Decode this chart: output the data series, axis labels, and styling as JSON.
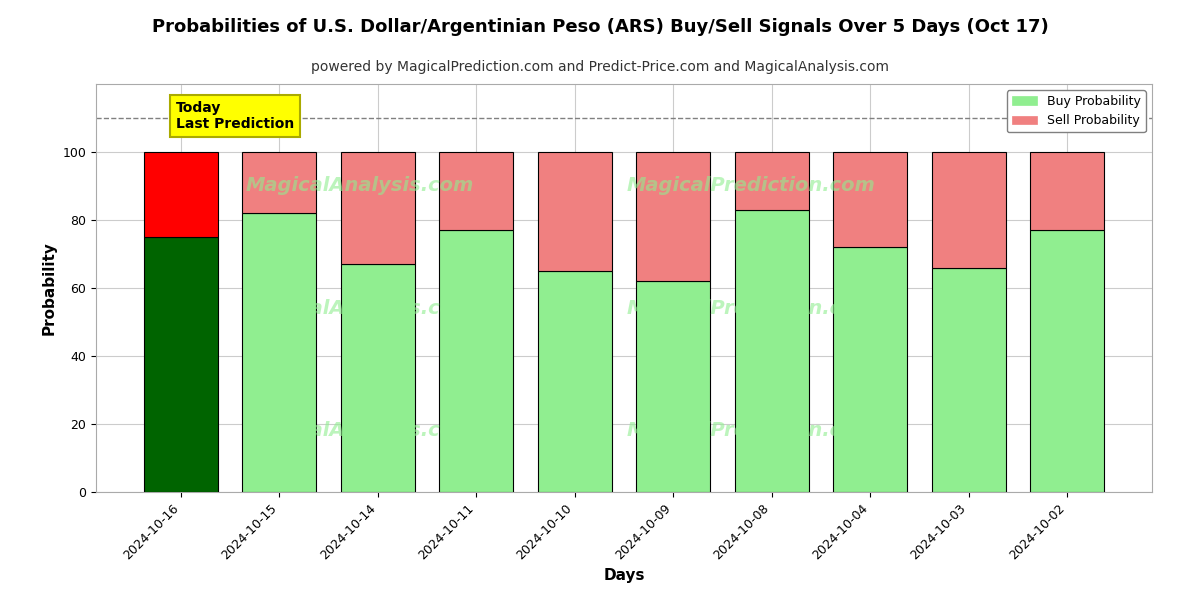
{
  "title": "Probabilities of U.S. Dollar/Argentinian Peso (ARS) Buy/Sell Signals Over 5 Days (Oct 17)",
  "subtitle": "powered by MagicalPrediction.com and Predict-Price.com and MagicalAnalysis.com",
  "xlabel": "Days",
  "ylabel": "Probability",
  "categories": [
    "2024-10-16",
    "2024-10-15",
    "2024-10-14",
    "2024-10-11",
    "2024-10-10",
    "2024-10-09",
    "2024-10-08",
    "2024-10-04",
    "2024-10-03",
    "2024-10-02"
  ],
  "buy_values": [
    75,
    82,
    67,
    77,
    65,
    62,
    83,
    72,
    66,
    77
  ],
  "sell_values": [
    25,
    18,
    33,
    23,
    35,
    38,
    17,
    28,
    34,
    23
  ],
  "today_buy_color": "#006400",
  "today_sell_color": "#FF0000",
  "buy_color": "#90EE90",
  "sell_color": "#F08080",
  "bar_edge_color": "#000000",
  "ylim": [
    0,
    120
  ],
  "yticks": [
    0,
    20,
    40,
    60,
    80,
    100
  ],
  "dashed_line_y": 110,
  "annotation_text": "Today\nLast Prediction",
  "annotation_bg": "#FFFF00",
  "legend_buy_label": "Buy Probability",
  "legend_sell_label": "Sell Probability",
  "title_fontsize": 13,
  "subtitle_fontsize": 10,
  "axis_label_fontsize": 11,
  "tick_fontsize": 9,
  "legend_fontsize": 9,
  "bg_color": "#FFFFFF",
  "grid_color": "#CCCCCC"
}
